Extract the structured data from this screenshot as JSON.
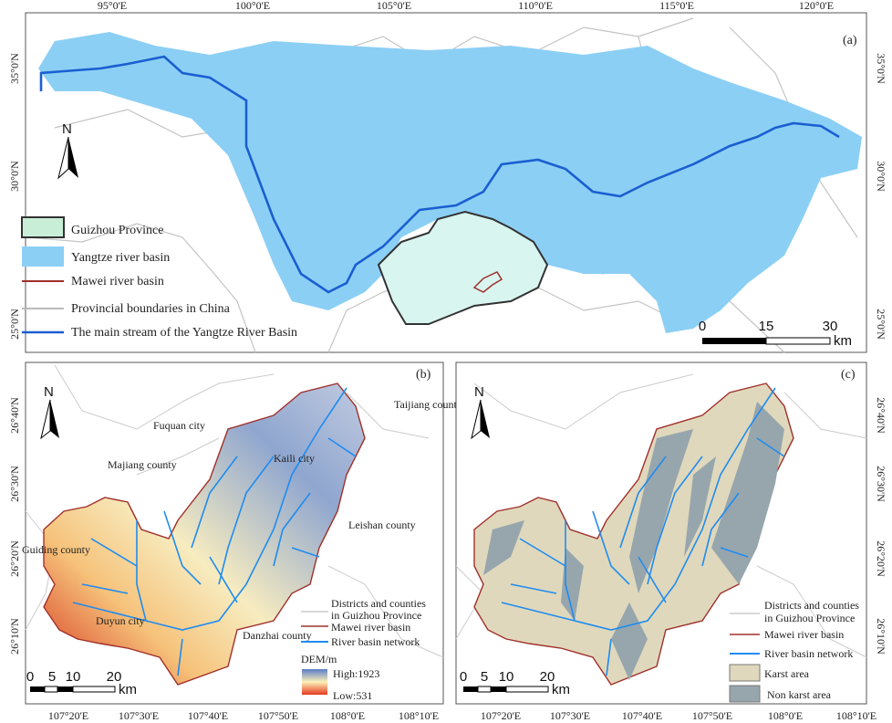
{
  "panel_a": {
    "label": "(a)",
    "lon_ticks": [
      "95°0'E",
      "100°0'E",
      "105°0'E",
      "110°0'E",
      "115°0'E",
      "120°0'E"
    ],
    "lat_ticks": [
      "35°0'N",
      "30°0'N",
      "25°0'N"
    ],
    "north": "N",
    "legend": [
      "Guizhou Province",
      "Yangtze river basin",
      "Mawei river basin",
      "Provincial boundaries in China",
      "The main stream of the Yangtze River Basin"
    ],
    "scale": {
      "ticks": [
        "0",
        "15",
        "30"
      ],
      "unit": "km"
    }
  },
  "panel_b": {
    "label": "(b)",
    "north": "N",
    "places": [
      "Fuquan city",
      "Taijiang county",
      "Kaili city",
      "Majiang county",
      "Leishan county",
      "Guiding county",
      "Duyun city",
      "Danzhai county"
    ],
    "legend": [
      "Districts and counties",
      "in Guizhou Province",
      "Mawei river basin",
      "River basin network"
    ],
    "dem": {
      "title": "DEM/m",
      "high": "High:1923",
      "low": "Low:531"
    },
    "scale": {
      "ticks": [
        "0",
        "5",
        "10",
        "20"
      ],
      "unit": "km"
    },
    "lon_ticks": [
      "107°20'E",
      "107°30'E",
      "107°40'E",
      "107°50'E",
      "108°0'E",
      "108°10'E"
    ],
    "lat_ticks": [
      "26°40'N",
      "26°30'N",
      "26°20'N",
      "26°10'N"
    ]
  },
  "panel_c": {
    "label": "(c)",
    "north": "N",
    "legend": [
      "Districts and counties",
      "in Guizhou Province",
      "Mawei river basin",
      "River basin network",
      "Karst area",
      "Non karst area"
    ],
    "scale": {
      "ticks": [
        "0",
        "5",
        "10",
        "20"
      ],
      "unit": "km"
    },
    "lon_ticks": [
      "107°20'E",
      "107°30'E",
      "107°40'E",
      "107°50'E",
      "108°0'E",
      "108°10'E"
    ],
    "lat_ticks": [
      "26°40'N",
      "26°30'N",
      "26°20'N",
      "26°10'N"
    ]
  },
  "colors": {
    "yangtze_basin": "#8ccff5",
    "guizhou": "#d8f5f0",
    "mawei": "#a0302a",
    "mainstream": "#1a5fd0",
    "rivers": "#1e8cf0",
    "karst": "#e0d8bc",
    "non_karst": "#97a6ad",
    "boundaries": "#bbbbbb"
  }
}
